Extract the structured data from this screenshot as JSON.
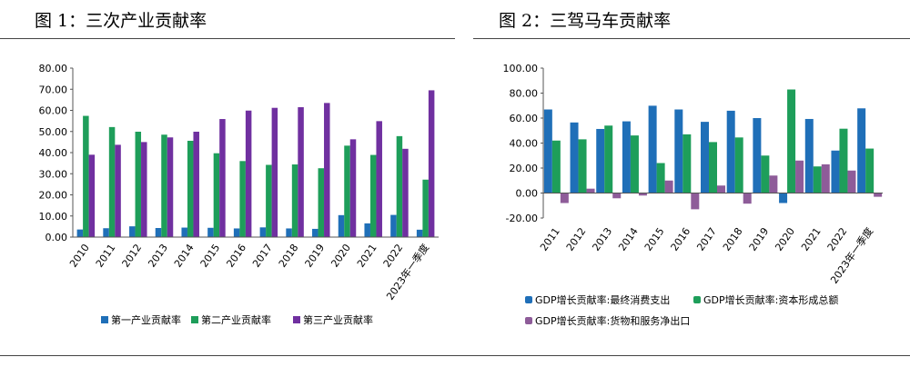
{
  "titles": {
    "left": "图 1：三次产业贡献率",
    "right": "图 2：三驾马车贡献率"
  },
  "chart_data": [
    {
      "type": "bar",
      "categories": [
        "2010",
        "2011",
        "2012",
        "2013",
        "2014",
        "2015",
        "2016",
        "2017",
        "2018",
        "2019",
        "2020",
        "2021",
        "2022",
        "2023年一季度"
      ],
      "series": [
        {
          "name": "第一产业贡献率",
          "color": "#1F6FB8",
          "values": [
            3.6,
            4.2,
            5.1,
            4.3,
            4.5,
            4.4,
            4.1,
            4.6,
            4.1,
            3.9,
            10.4,
            6.5,
            10.5,
            3.5
          ]
        },
        {
          "name": "第二产业贡献率",
          "color": "#1E9E5A",
          "values": [
            57.4,
            52.1,
            49.9,
            48.5,
            45.6,
            39.7,
            36.0,
            34.2,
            34.4,
            32.6,
            43.3,
            38.9,
            47.8,
            27.2
          ]
        },
        {
          "name": "第三产业贡献率",
          "color": "#7030A0",
          "values": [
            39.0,
            43.7,
            45.0,
            47.2,
            49.9,
            55.9,
            59.9,
            61.2,
            61.5,
            63.5,
            46.3,
            54.9,
            41.8,
            69.5
          ]
        }
      ],
      "ylim": [
        0,
        80
      ],
      "yticks": [
        "80.00",
        "70.00",
        "60.00",
        "50.00",
        "40.00",
        "30.00",
        "20.00",
        "10.00",
        "0.00"
      ],
      "grid": false,
      "legend": "bottom"
    },
    {
      "type": "bar",
      "categories": [
        "2011",
        "2012",
        "2013",
        "2014",
        "2015",
        "2016",
        "2017",
        "2018",
        "2019",
        "2020",
        "2021",
        "2022",
        "2023年一季度"
      ],
      "series": [
        {
          "name": "GDP增长贡献率:最终消费支出",
          "color": "#1F6FB8",
          "values": [
            66.9,
            56.5,
            51.3,
            57.4,
            69.9,
            66.9,
            57.0,
            65.9,
            60.0,
            -8.0,
            59.3,
            34.0,
            67.8
          ]
        },
        {
          "name": "GDP增长贡献率:资本形成总额",
          "color": "#1E9E5A",
          "values": [
            42.0,
            43.0,
            54.0,
            46.1,
            24.0,
            47.0,
            40.8,
            44.5,
            30.0,
            82.9,
            21.3,
            51.5,
            35.6
          ]
        },
        {
          "name": "GDP增长贡献率:货物和服务净出口",
          "color": "#8E5C99",
          "values": [
            -8.0,
            3.5,
            -4.2,
            -2.0,
            10.0,
            -13.0,
            6.0,
            -8.5,
            14.0,
            26.0,
            23.0,
            18.0,
            -3.0
          ]
        }
      ],
      "ylim": [
        -20,
        100
      ],
      "yticks": [
        "100.00",
        "80.00",
        "60.00",
        "40.00",
        "20.00",
        "0.00",
        "-20.00"
      ],
      "grid": false,
      "legend": "bottom"
    }
  ]
}
